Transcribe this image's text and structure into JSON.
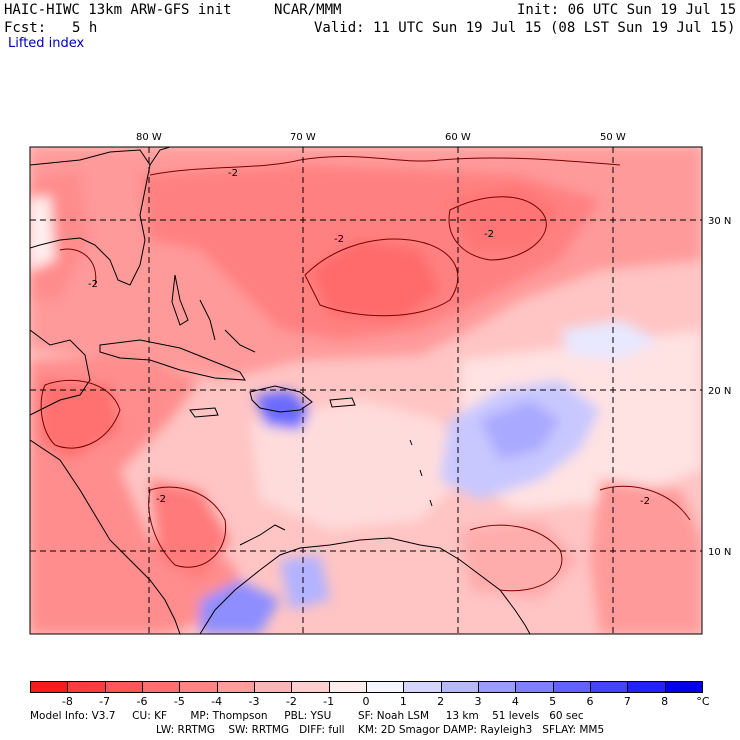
{
  "header": {
    "model": "HAIC-HIWC 13km ARW-GFS init",
    "org": "NCAR/MMM",
    "init": "Init: 06 UTC Sun 19 Jul 15",
    "fcst_label": "Fcst:",
    "fcst_value": "5 h",
    "valid": "Valid: 11 UTC Sun 19 Jul 15 (08 LST Sun 19 Jul 15)",
    "field": "Lifted index"
  },
  "map": {
    "lon_labels": [
      "80 W",
      "70 W",
      "60 W",
      "50 W"
    ],
    "lat_labels": [
      "30 N",
      "20 N",
      "10 N"
    ],
    "contour_labels": [
      "-2",
      "-2",
      "-2",
      "-2",
      "-2",
      "-2"
    ]
  },
  "colorbar": {
    "units": "°C",
    "ticks": [
      "-8",
      "-7",
      "-6",
      "-5",
      "-4",
      "-3",
      "-2",
      "-1",
      "0",
      "1",
      "2",
      "3",
      "4",
      "5",
      "6",
      "7",
      "8"
    ],
    "colors": [
      "#ff1a1a",
      "#ff3b3b",
      "#ff5656",
      "#ff6f6f",
      "#ff8585",
      "#ff9d9d",
      "#ffb5b5",
      "#ffcfcf",
      "#ffeded",
      "#f5f5ff",
      "#d5d5ff",
      "#b8b8ff",
      "#9c9cff",
      "#8080ff",
      "#6262ff",
      "#4444ff",
      "#2222ff",
      "#0000ee"
    ]
  },
  "model_info": {
    "line1": "Model Info: V3.7     CU: KF       MP: Thompson     PBL: YSU        SF: Noah LSM     13 km    51 levels   60 sec",
    "line2": "LW: RRTMG    SW: RRTMG   DIFF: full    KM: 2D Smagor DAMP: Rayleigh3   SFLAY: MM5"
  }
}
